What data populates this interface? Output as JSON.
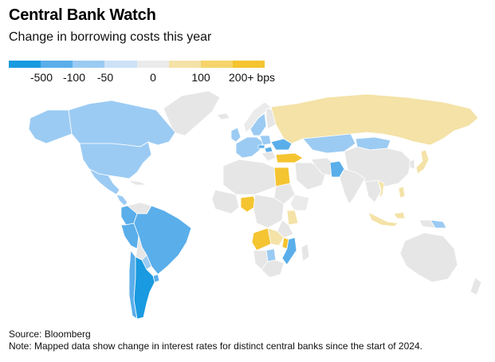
{
  "header": {
    "title": "Central Bank Watch",
    "subtitle": "Change in borrowing costs this year"
  },
  "legend": {
    "colors": [
      "#1a9ae0",
      "#5aaeea",
      "#9bcbf3",
      "#cde2f6",
      "#ebebeb",
      "#f4e2a7",
      "#f6d46b",
      "#f5c431"
    ],
    "labels": [
      "-500",
      "-100",
      "-50",
      "0",
      "100",
      "200+ bps"
    ]
  },
  "map": {
    "no_data_color": "#e6e6e6",
    "regions": [
      {
        "name": "canada",
        "value": -50
      },
      {
        "name": "alaska",
        "value": -50
      },
      {
        "name": "usa",
        "value": -50
      },
      {
        "name": "mexico",
        "value": -50
      },
      {
        "name": "central-america",
        "value": -50
      },
      {
        "name": "brazil",
        "value": -100
      },
      {
        "name": "colombia",
        "value": -100
      },
      {
        "name": "peru",
        "value": -100
      },
      {
        "name": "argentina",
        "value": -500
      },
      {
        "name": "chile",
        "value": -100
      },
      {
        "name": "uruguay",
        "value": -100
      },
      {
        "name": "paraguay",
        "value": -50
      },
      {
        "name": "sweden",
        "value": -50
      },
      {
        "name": "norway",
        "value": 0
      },
      {
        "name": "euro-area",
        "value": -50
      },
      {
        "name": "uk",
        "value": -50
      },
      {
        "name": "poland",
        "value": -50
      },
      {
        "name": "hungary",
        "value": -100
      },
      {
        "name": "czechia",
        "value": -100
      },
      {
        "name": "ukraine",
        "value": -100
      },
      {
        "name": "turkey",
        "value": 200
      },
      {
        "name": "russia",
        "value": 100
      },
      {
        "name": "kazakhstan",
        "value": -50
      },
      {
        "name": "mongolia",
        "value": -50
      },
      {
        "name": "egypt",
        "value": 200
      },
      {
        "name": "nigeria",
        "value": 200
      },
      {
        "name": "angola",
        "value": 200
      },
      {
        "name": "zambia",
        "value": 100
      },
      {
        "name": "malawi",
        "value": 200
      },
      {
        "name": "mozambique",
        "value": -100
      },
      {
        "name": "kenya",
        "value": 100
      },
      {
        "name": "ethiopia",
        "value": 0
      },
      {
        "name": "botswana",
        "value": -50
      },
      {
        "name": "pakistan",
        "value": -100
      },
      {
        "name": "japan",
        "value": 100
      },
      {
        "name": "indonesia",
        "value": 100
      },
      {
        "name": "philippines",
        "value": 100
      },
      {
        "name": "vietnam",
        "value": 100
      },
      {
        "name": "png-east",
        "value": -50
      }
    ]
  },
  "footer": {
    "source": "Source: Bloomberg",
    "note": "Note: Mapped data show change in interest rates for distinct central banks since the start of 2024."
  }
}
